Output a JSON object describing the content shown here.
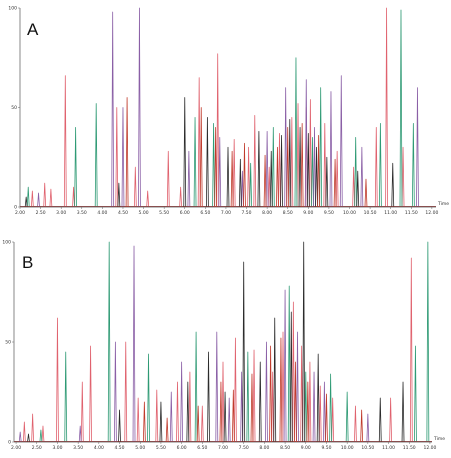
{
  "colors": {
    "series_pink": "#e0626e",
    "series_green": "#2e9a74",
    "series_purple": "#8a5fa6",
    "series_black": "#2b2b2b",
    "series_red": "#c03a2b",
    "axis": "#555555"
  },
  "chart_data": [
    {
      "type": "line",
      "panel_label": "A",
      "xlabel": "",
      "ylabel": "",
      "xlim": [
        2.0,
        12.1
      ],
      "ylim": [
        0,
        100
      ],
      "x_ticks": [
        "2.00",
        "2.50",
        "3.00",
        "3.50",
        "4.00",
        "4.50",
        "5.00",
        "5.50",
        "6.00",
        "6.50",
        "7.00",
        "7.50",
        "8.00",
        "8.50",
        "9.00",
        "9.50",
        "10.00",
        "10.50",
        "11.00",
        "11.50",
        "12.00"
      ],
      "y_ticks": [
        "0",
        "50",
        "100"
      ],
      "x_unit_label": "Time",
      "series": [
        {
          "color_key": "series_pink",
          "peaks": [
            [
              2.3,
              8
            ],
            [
              2.6,
              12
            ],
            [
              2.75,
              9
            ],
            [
              3.1,
              66
            ],
            [
              3.3,
              10
            ],
            [
              4.35,
              50
            ],
            [
              4.8,
              20
            ],
            [
              5.1,
              8
            ],
            [
              5.6,
              28
            ],
            [
              5.9,
              10
            ],
            [
              6.35,
              65
            ],
            [
              6.8,
              77
            ],
            [
              7.2,
              34
            ],
            [
              7.55,
              30
            ],
            [
              7.7,
              46
            ],
            [
              8.05,
              20
            ],
            [
              8.3,
              37
            ],
            [
              8.6,
              45
            ],
            [
              8.75,
              52
            ],
            [
              8.95,
              50
            ],
            [
              9.05,
              54
            ],
            [
              9.4,
              42
            ],
            [
              9.7,
              28
            ],
            [
              10.1,
              20
            ],
            [
              10.65,
              40
            ],
            [
              10.9,
              100
            ],
            [
              11.3,
              30
            ]
          ]
        },
        {
          "color_key": "series_green",
          "peaks": [
            [
              2.2,
              10
            ],
            [
              3.35,
              40
            ],
            [
              3.85,
              52
            ],
            [
              6.25,
              45
            ],
            [
              6.7,
              42
            ],
            [
              7.6,
              22
            ],
            [
              8.15,
              40
            ],
            [
              8.7,
              75
            ],
            [
              9.1,
              35
            ],
            [
              9.3,
              60
            ],
            [
              10.15,
              35
            ],
            [
              10.75,
              42
            ],
            [
              11.25,
              99
            ],
            [
              11.55,
              42
            ]
          ]
        },
        {
          "color_key": "series_purple",
          "peaks": [
            [
              2.45,
              7
            ],
            [
              4.25,
              98
            ],
            [
              4.5,
              50
            ],
            [
              4.9,
              100
            ],
            [
              6.1,
              28
            ],
            [
              6.85,
              35
            ],
            [
              7.4,
              18
            ],
            [
              8.0,
              38
            ],
            [
              8.45,
              60
            ],
            [
              8.95,
              64
            ],
            [
              9.15,
              40
            ],
            [
              9.55,
              58
            ],
            [
              9.8,
              66
            ],
            [
              10.3,
              30
            ],
            [
              11.65,
              60
            ]
          ]
        },
        {
          "color_key": "series_black",
          "peaks": [
            [
              2.15,
              5
            ],
            [
              4.4,
              12
            ],
            [
              6.0,
              55
            ],
            [
              6.55,
              45
            ],
            [
              7.05,
              30
            ],
            [
              7.35,
              24
            ],
            [
              7.8,
              38
            ],
            [
              8.1,
              28
            ],
            [
              8.35,
              36
            ],
            [
              8.55,
              44
            ],
            [
              8.8,
              40
            ],
            [
              9.0,
              37
            ],
            [
              9.2,
              30
            ],
            [
              9.45,
              25
            ],
            [
              10.2,
              18
            ],
            [
              11.05,
              22
            ]
          ]
        },
        {
          "color_key": "series_red",
          "peaks": [
            [
              4.6,
              55
            ],
            [
              6.4,
              50
            ],
            [
              6.75,
              40
            ],
            [
              7.15,
              28
            ],
            [
              7.45,
              32
            ],
            [
              7.95,
              26
            ],
            [
              8.25,
              30
            ],
            [
              8.5,
              40
            ],
            [
              8.85,
              42
            ],
            [
              9.25,
              36
            ],
            [
              9.65,
              24
            ],
            [
              10.4,
              14
            ]
          ]
        }
      ]
    },
    {
      "type": "line",
      "panel_label": "B",
      "xlabel": "",
      "ylabel": "",
      "xlim": [
        1.95,
        12.05
      ],
      "ylim": [
        0,
        100
      ],
      "x_ticks": [
        "2.00",
        "2.50",
        "3.00",
        "3.50",
        "4.00",
        "4.50",
        "5.00",
        "5.50",
        "6.00",
        "6.50",
        "7.00",
        "7.50",
        "8.00",
        "8.50",
        "9.00",
        "9.50",
        "10.00",
        "10.50",
        "11.00",
        "11.50",
        "12.00"
      ],
      "y_ticks": [
        "0",
        "50",
        "100"
      ],
      "x_unit_label": "Time",
      "series": [
        {
          "color_key": "series_pink",
          "peaks": [
            [
              2.2,
              10
            ],
            [
              2.4,
              14
            ],
            [
              2.65,
              8
            ],
            [
              3.0,
              62
            ],
            [
              3.6,
              30
            ],
            [
              3.8,
              48
            ],
            [
              4.65,
              50
            ],
            [
              4.95,
              22
            ],
            [
              5.4,
              26
            ],
            [
              5.9,
              30
            ],
            [
              6.2,
              35
            ],
            [
              6.5,
              18
            ],
            [
              7.0,
              40
            ],
            [
              7.3,
              52
            ],
            [
              7.75,
              46
            ],
            [
              8.2,
              35
            ],
            [
              8.45,
              55
            ],
            [
              8.7,
              70
            ],
            [
              8.9,
              48
            ],
            [
              9.1,
              40
            ],
            [
              9.35,
              28
            ],
            [
              9.65,
              22
            ],
            [
              10.2,
              18
            ],
            [
              11.05,
              22
            ],
            [
              11.55,
              92
            ]
          ]
        },
        {
          "color_key": "series_green",
          "peaks": [
            [
              2.6,
              6
            ],
            [
              3.2,
              45
            ],
            [
              4.25,
              100
            ],
            [
              5.2,
              44
            ],
            [
              6.35,
              55
            ],
            [
              7.6,
              45
            ],
            [
              8.6,
              78
            ],
            [
              9.0,
              35
            ],
            [
              9.6,
              34
            ],
            [
              10.0,
              25
            ],
            [
              11.65,
              48
            ],
            [
              11.95,
              100
            ]
          ]
        },
        {
          "color_key": "series_purple",
          "peaks": [
            [
              2.1,
              5
            ],
            [
              3.55,
              8
            ],
            [
              4.4,
              50
            ],
            [
              4.85,
              98
            ],
            [
              5.75,
              25
            ],
            [
              6.0,
              40
            ],
            [
              6.85,
              55
            ],
            [
              7.15,
              22
            ],
            [
              7.45,
              35
            ],
            [
              8.05,
              50
            ],
            [
              8.5,
              76
            ],
            [
              8.8,
              55
            ],
            [
              9.2,
              35
            ],
            [
              9.45,
              30
            ],
            [
              10.5,
              14
            ]
          ]
        },
        {
          "color_key": "series_black",
          "peaks": [
            [
              2.3,
              4
            ],
            [
              4.5,
              16
            ],
            [
              5.5,
              20
            ],
            [
              6.15,
              30
            ],
            [
              6.65,
              45
            ],
            [
              7.05,
              25
            ],
            [
              7.5,
              90
            ],
            [
              7.9,
              40
            ],
            [
              8.25,
              62
            ],
            [
              8.65,
              65
            ],
            [
              8.95,
              100
            ],
            [
              9.3,
              44
            ],
            [
              10.8,
              22
            ],
            [
              11.35,
              30
            ]
          ]
        },
        {
          "color_key": "series_red",
          "peaks": [
            [
              5.1,
              20
            ],
            [
              5.65,
              12
            ],
            [
              6.4,
              18
            ],
            [
              6.95,
              30
            ],
            [
              7.25,
              26
            ],
            [
              7.7,
              34
            ],
            [
              8.15,
              48
            ],
            [
              8.4,
              52
            ],
            [
              8.75,
              40
            ],
            [
              9.05,
              30
            ],
            [
              9.5,
              24
            ],
            [
              10.35,
              16
            ]
          ]
        }
      ]
    }
  ]
}
